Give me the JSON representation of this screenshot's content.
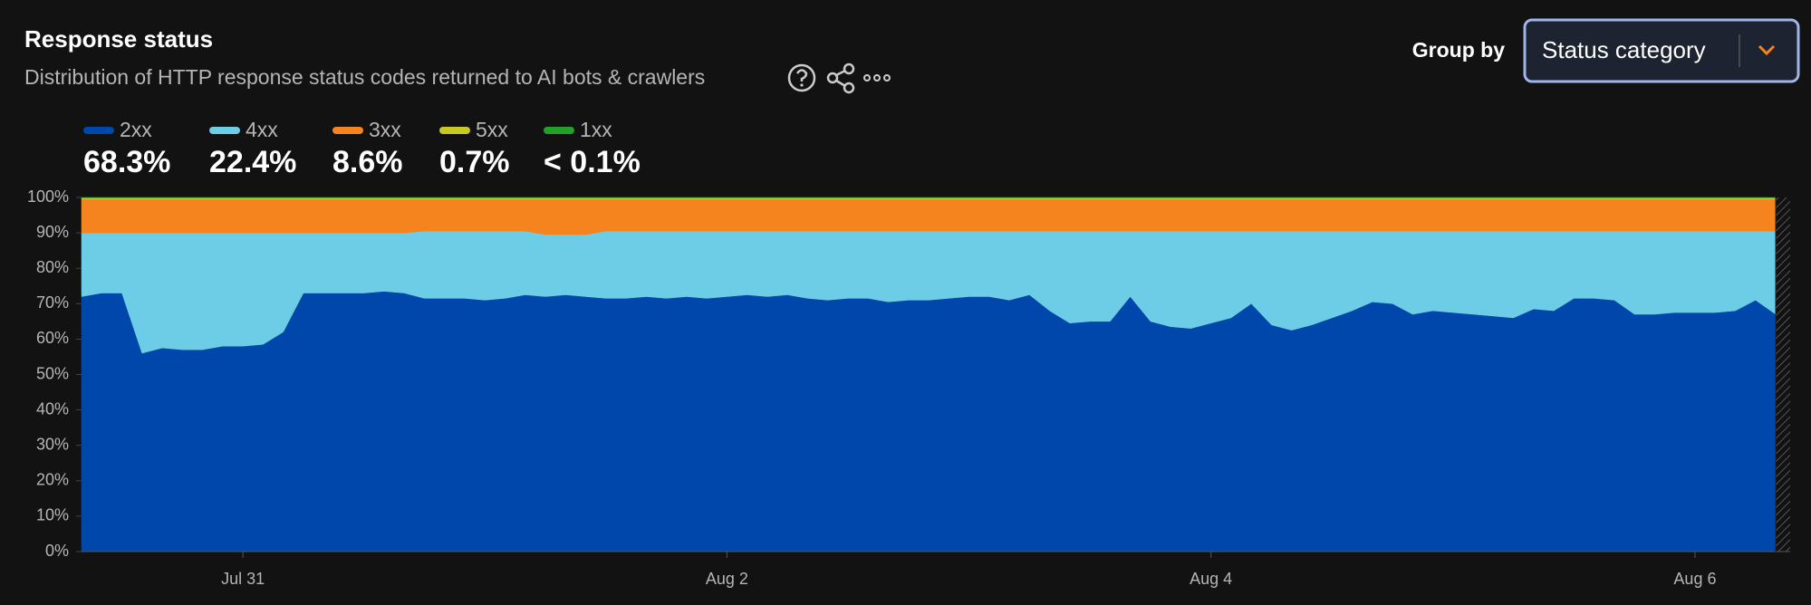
{
  "header": {
    "title": "Response status",
    "subtitle": "Distribution of HTTP response status codes returned to AI bots & crawlers",
    "group_by_label": "Group by",
    "group_by_value": "Status category"
  },
  "chart_data": {
    "type": "stacked_area",
    "stacked_percent": true,
    "categories": [
      null,
      null,
      null,
      null,
      null,
      null,
      null,
      null,
      "Jul 31",
      null,
      null,
      null,
      null,
      null,
      null,
      null,
      null,
      null,
      null,
      null,
      null,
      null,
      null,
      null,
      null,
      null,
      null,
      null,
      null,
      null,
      null,
      null,
      "Aug 2",
      null,
      null,
      null,
      null,
      null,
      null,
      null,
      null,
      null,
      null,
      null,
      null,
      null,
      null,
      null,
      null,
      null,
      null,
      null,
      null,
      null,
      null,
      null,
      "Aug 4",
      null,
      null,
      null,
      null,
      null,
      null,
      null,
      null,
      null,
      null,
      null,
      null,
      null,
      null,
      null,
      null,
      null,
      null,
      null,
      null,
      null,
      null,
      null,
      "Aug 6",
      null,
      null,
      null,
      null
    ],
    "ylim": [
      0,
      100
    ],
    "yticks": [
      {
        "value": 0,
        "label": "0%"
      },
      {
        "value": 10,
        "label": "10%"
      },
      {
        "value": 20,
        "label": "20%"
      },
      {
        "value": 30,
        "label": "30%"
      },
      {
        "value": 40,
        "label": "40%"
      },
      {
        "value": 50,
        "label": "50%"
      },
      {
        "value": 60,
        "label": "60%"
      },
      {
        "value": 70,
        "label": "70%"
      },
      {
        "value": 80,
        "label": "80%"
      },
      {
        "value": 90,
        "label": "90%"
      },
      {
        "value": 100,
        "label": "100%"
      }
    ],
    "series": [
      {
        "name": "2xx",
        "color": "#0047ab",
        "total_label": "68.3%",
        "values": [
          72,
          73,
          73,
          56,
          57.5,
          57,
          57,
          58,
          58,
          58.5,
          62,
          73,
          73,
          73,
          73,
          73.5,
          73,
          71.5,
          71.5,
          71.5,
          71,
          71.5,
          72.5,
          72,
          72.5,
          72,
          71.5,
          71.5,
          72,
          71.5,
          72,
          71.5,
          72,
          72.5,
          72,
          72.5,
          71.5,
          71,
          71.5,
          71.5,
          70.5,
          71,
          71,
          71.5,
          72,
          72,
          71,
          72.5,
          68,
          64.5,
          65,
          65,
          72,
          65,
          63.5,
          63,
          64.5,
          66,
          70,
          64,
          62.5,
          64,
          66,
          68,
          70.5,
          70,
          67,
          68,
          67.5,
          67,
          66.5,
          66,
          68.5,
          68,
          71.5,
          71.5,
          71,
          67,
          67,
          67.5,
          67.5,
          67.5,
          68,
          71,
          67
        ]
      },
      {
        "name": "4xx",
        "color": "#6ecde6",
        "total_label": "22.4%",
        "values": [
          18,
          17,
          17,
          34,
          32.5,
          33,
          33,
          32,
          32,
          31.5,
          28,
          17,
          17,
          17,
          17,
          16.5,
          17,
          19,
          19,
          19,
          19.5,
          19,
          18,
          17.5,
          17,
          17.5,
          19,
          19,
          18.5,
          19,
          18.5,
          19,
          18.5,
          18,
          18.5,
          18,
          19,
          19.5,
          19,
          19,
          20,
          19.5,
          19.5,
          19,
          18.5,
          18.5,
          19.5,
          18,
          22.5,
          26,
          25.5,
          25.5,
          18.5,
          25.5,
          27,
          27.5,
          26,
          24.5,
          20.5,
          26.5,
          28,
          26.5,
          24.5,
          22.5,
          20,
          20.5,
          23.5,
          22.5,
          23,
          23.5,
          24,
          24.5,
          22,
          22.5,
          19,
          19,
          19.5,
          23.5,
          23.5,
          23,
          23,
          23,
          22.5,
          19.5,
          23.5
        ]
      },
      {
        "name": "3xx",
        "color": "#f5841f",
        "total_label": "8.6%",
        "values": [
          9.5,
          9.5,
          9.5,
          9.5,
          9.5,
          9.5,
          9.5,
          9.5,
          9.5,
          9.5,
          9.5,
          9.5,
          9.5,
          9.5,
          9.5,
          9.5,
          9.5,
          9,
          9,
          9,
          9,
          9,
          9,
          10,
          10,
          10,
          9,
          9,
          9,
          9,
          9,
          9,
          9,
          9,
          9,
          9,
          9,
          9,
          9,
          9,
          9,
          9,
          9,
          9,
          9,
          9,
          9,
          9,
          9,
          9,
          9,
          9,
          9,
          9,
          9,
          9,
          9,
          9,
          9,
          9,
          9,
          9,
          9,
          9,
          9,
          9,
          9,
          9,
          9,
          9,
          9,
          9,
          9,
          9,
          9,
          9,
          9,
          9,
          9,
          9,
          9,
          9,
          9,
          9,
          9
        ]
      },
      {
        "name": "5xx",
        "color": "#c8c81e",
        "total_label": "0.7%",
        "values": [
          0.4,
          0.4,
          0.4,
          0.4,
          0.4,
          0.4,
          0.4,
          0.4,
          0.4,
          0.4,
          0.4,
          0.4,
          0.4,
          0.4,
          0.4,
          0.4,
          0.4,
          0.4,
          0.4,
          0.4,
          0.4,
          0.4,
          0.4,
          0.4,
          0.4,
          0.4,
          0.4,
          0.4,
          0.4,
          0.4,
          0.4,
          0.4,
          0.4,
          0.4,
          0.4,
          0.4,
          0.4,
          0.4,
          0.4,
          0.4,
          0.4,
          0.4,
          0.4,
          0.4,
          0.4,
          0.4,
          0.4,
          0.4,
          0.4,
          0.4,
          0.4,
          0.4,
          0.4,
          0.4,
          0.4,
          0.4,
          0.4,
          0.4,
          0.4,
          0.4,
          0.4,
          0.4,
          0.4,
          0.4,
          0.4,
          0.4,
          0.4,
          0.4,
          0.4,
          0.4,
          0.4,
          0.4,
          0.4,
          0.4,
          0.4,
          0.4,
          0.4,
          0.4,
          0.4,
          0.4,
          0.4,
          0.4,
          0.4,
          0.4,
          0.4
        ]
      },
      {
        "name": "1xx",
        "color": "#22a02a",
        "total_label": "< 0.1%",
        "values": [
          0.1,
          0.1,
          0.1,
          0.1,
          0.1,
          0.1,
          0.1,
          0.1,
          0.1,
          0.1,
          0.1,
          0.1,
          0.1,
          0.1,
          0.1,
          0.1,
          0.1,
          0.1,
          0.1,
          0.1,
          0.1,
          0.1,
          0.1,
          0.1,
          0.1,
          0.1,
          0.1,
          0.1,
          0.1,
          0.1,
          0.1,
          0.1,
          0.1,
          0.1,
          0.1,
          0.1,
          0.1,
          0.1,
          0.1,
          0.1,
          0.1,
          0.1,
          0.1,
          0.1,
          0.1,
          0.1,
          0.1,
          0.1,
          0.1,
          0.1,
          0.1,
          0.1,
          0.1,
          0.1,
          0.1,
          0.1,
          0.1,
          0.1,
          0.1,
          0.1,
          0.1,
          0.1,
          0.1,
          0.1,
          0.1,
          0.1,
          0.1,
          0.1,
          0.1,
          0.1,
          0.1,
          0.1,
          0.1,
          0.1,
          0.1,
          0.1,
          0.1,
          0.1,
          0.1,
          0.1,
          0.1,
          0.1,
          0.1,
          0.1,
          0.1
        ]
      }
    ]
  }
}
